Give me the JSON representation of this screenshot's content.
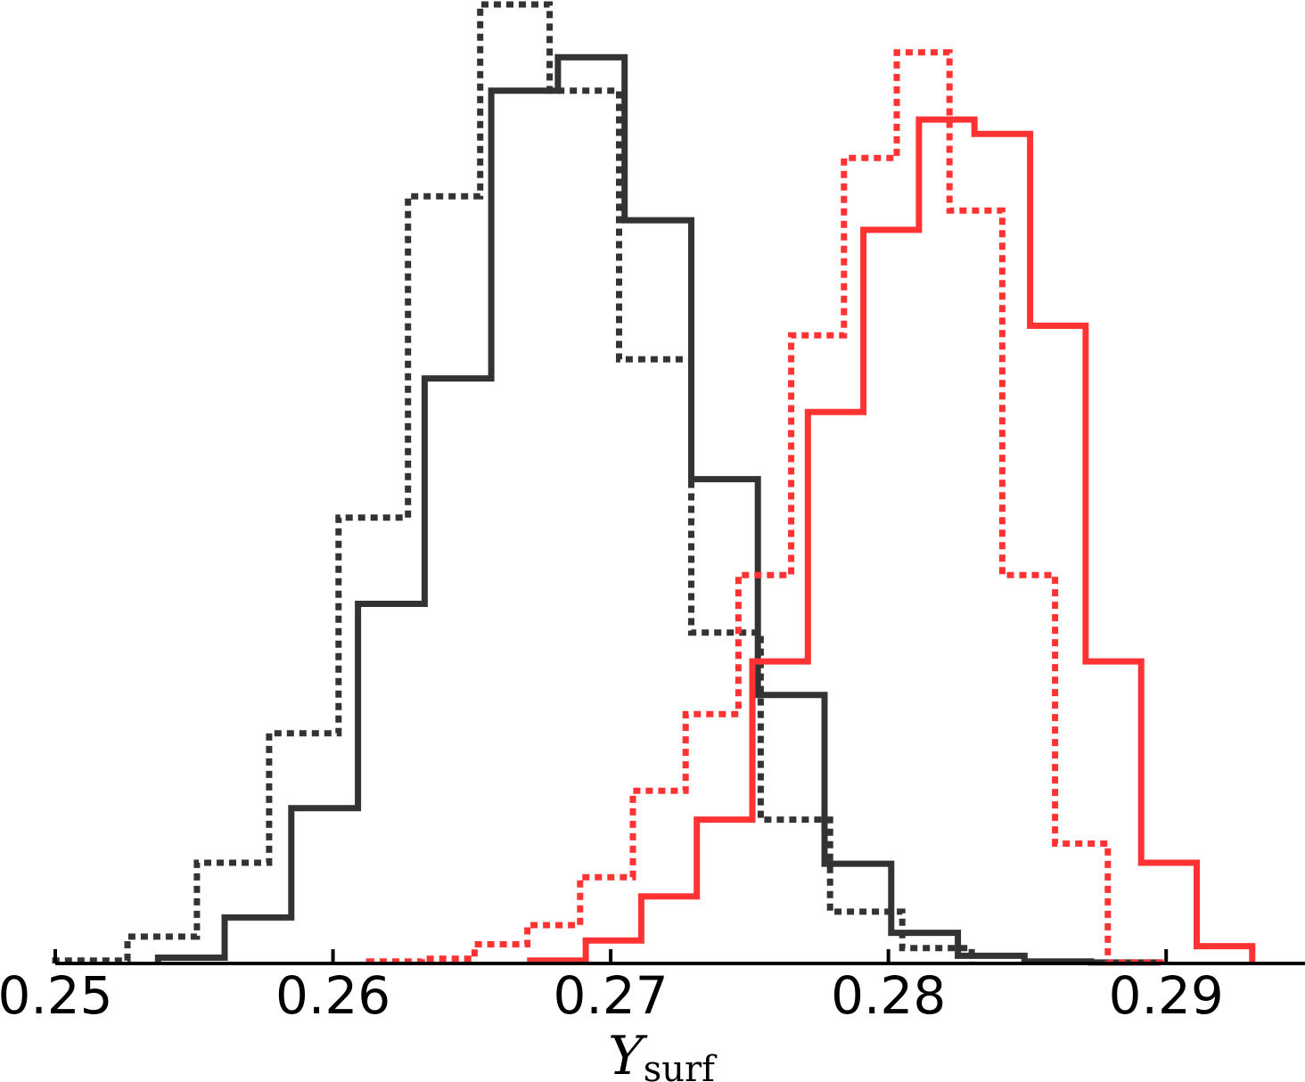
{
  "chart_data": {
    "type": "histogram",
    "title": "",
    "xlabel": "Y",
    "xlabel_subscript": "surf",
    "ylabel": "",
    "xlim": [
      0.25,
      0.295
    ],
    "ylim": [
      0,
      1.0
    ],
    "y_axis_visible": false,
    "grid": false,
    "legend": "none",
    "xticks": [
      {
        "value": 0.25,
        "label": "0.25"
      },
      {
        "value": 0.26,
        "label": "0.26"
      },
      {
        "value": 0.27,
        "label": "0.27"
      },
      {
        "value": 0.28,
        "label": "0.28"
      },
      {
        "value": 0.29,
        "label": "0.29"
      }
    ],
    "series": [
      {
        "style": "dotted",
        "color": "#333333",
        "bin_edges": [
          0.25,
          0.2526,
          0.2551,
          0.2577,
          0.2602,
          0.2627,
          0.2653,
          0.2678,
          0.2703,
          0.2729,
          0.2754,
          0.2779,
          0.2805,
          0.283
        ],
        "values": [
          0.003,
          0.028,
          0.105,
          0.24,
          0.465,
          0.8,
          1.0,
          0.91,
          0.63,
          0.345,
          0.15,
          0.054,
          0.016
        ]
      },
      {
        "style": "solid",
        "color": "#333333",
        "bin_edges": [
          0.2537,
          0.2561,
          0.2585,
          0.2609,
          0.2633,
          0.2657,
          0.2681,
          0.2705,
          0.2729,
          0.2753,
          0.2777,
          0.2801,
          0.2825,
          0.2849,
          0.2873,
          0.2897
        ],
        "values": [
          0.006,
          0.048,
          0.162,
          0.375,
          0.61,
          0.91,
          0.945,
          0.775,
          0.505,
          0.28,
          0.104,
          0.032,
          0.008,
          0.002,
          0.001
        ]
      },
      {
        "style": "dotted",
        "color": "#ff3333",
        "bin_edges": [
          0.2613,
          0.2632,
          0.2651,
          0.267,
          0.2689,
          0.2708,
          0.2727,
          0.2746,
          0.2765,
          0.2784,
          0.2803,
          0.2822,
          0.2841,
          0.286,
          0.2879,
          0.2898
        ],
        "values": [
          0.002,
          0.005,
          0.02,
          0.04,
          0.09,
          0.18,
          0.26,
          0.405,
          0.655,
          0.84,
          0.95,
          0.785,
          0.405,
          0.125,
          0.001
        ]
      },
      {
        "style": "solid",
        "color": "#ff3333",
        "bin_edges": [
          0.2671,
          0.2691,
          0.2711,
          0.2731,
          0.2751,
          0.2771,
          0.2791,
          0.2811,
          0.2831,
          0.2851,
          0.2871,
          0.2891,
          0.2911,
          0.2931
        ],
        "values": [
          0.003,
          0.024,
          0.07,
          0.15,
          0.315,
          0.575,
          0.765,
          0.88,
          0.865,
          0.665,
          0.315,
          0.105,
          0.018
        ]
      }
    ]
  }
}
